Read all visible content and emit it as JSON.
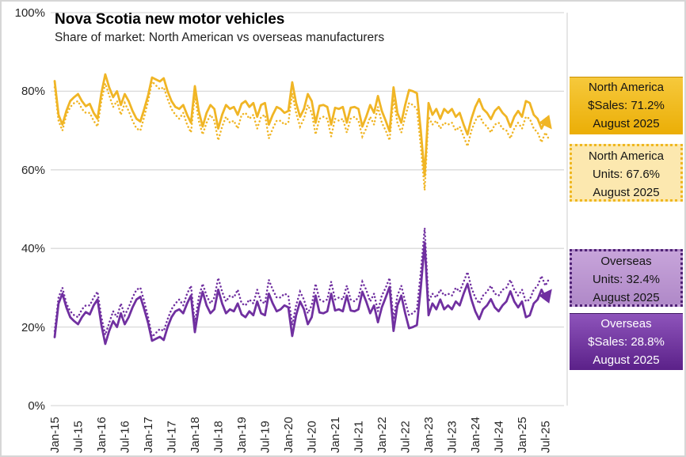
{
  "title": "Nova Scotia new motor vehicles",
  "subtitle": "Share of market: North American vs overseas manufacturers",
  "colors": {
    "north_america_line": "#f0b525",
    "overseas_line": "#7030a0",
    "gridline": "#d9d9d9",
    "axis_text": "#262626"
  },
  "legend": {
    "boxes": [
      {
        "title": "North America",
        "value": "$Sales: 71.2%",
        "date": "August 2025"
      },
      {
        "title": "North America",
        "value": "Units: 67.6%",
        "date": "August 2025"
      },
      {
        "title": "Overseas",
        "value": "Units: 32.4%",
        "date": "August 2025"
      },
      {
        "title": "Overseas",
        "value": "$Sales: 28.8%",
        "date": "August 2025"
      }
    ]
  },
  "chart_data": {
    "type": "line",
    "title": "Nova Scotia new motor vehicles",
    "subtitle": "Share of market: North American vs overseas manufacturers",
    "x_monthly_range": "Jan-2015 to Aug-2025 (monthly)",
    "x_ticks": [
      "Jan-15",
      "Jul-15",
      "Jan-16",
      "Jul-16",
      "Jan-17",
      "Jul-17",
      "Jan-18",
      "Jul-18",
      "Jan-19",
      "Jul-19",
      "Jan-20",
      "Jul-20",
      "Jan-21",
      "Jul-21",
      "Jan-22",
      "Jul-22",
      "Jan-23",
      "Jul-23",
      "Jan-24",
      "Jul-24",
      "Jan-25",
      "Jul-25"
    ],
    "y_ticks": [
      "100%",
      "80%",
      "60%",
      "40%",
      "20%",
      "0%"
    ],
    "ylim": [
      0,
      100
    ],
    "grid": "horizontal",
    "legend_position": "right",
    "series": [
      {
        "name": "North America $Sales",
        "style": "solid",
        "color": "#f0b525",
        "arrow_end": true,
        "values": [
          82.6,
          74,
          71.5,
          75,
          77.5,
          78.5,
          79.3,
          77.5,
          76.2,
          76.8,
          74.5,
          73,
          79.5,
          84.3,
          81,
          78.5,
          80,
          76.5,
          79.3,
          77.5,
          75,
          73,
          72.3,
          75.5,
          79,
          83.5,
          83,
          82.5,
          83.3,
          80,
          77.5,
          76,
          75.5,
          76.5,
          74,
          72,
          81.3,
          75,
          71,
          74.5,
          76.5,
          75.5,
          70.5,
          74,
          76.5,
          75.5,
          76,
          74,
          76.8,
          77.5,
          76,
          77,
          73.5,
          76.5,
          77,
          71.5,
          74,
          76,
          75.5,
          74.5,
          75,
          82.3,
          77,
          73.5,
          75.5,
          79.3,
          77.5,
          72,
          76.3,
          76.5,
          76,
          71.5,
          75.8,
          75.5,
          76,
          72,
          75.8,
          76,
          75.5,
          71,
          73.5,
          76.5,
          74.5,
          78.8,
          75,
          72.5,
          69.8,
          81,
          74.5,
          72,
          76.5,
          80.3,
          80,
          79.5,
          70,
          58.5,
          77,
          74,
          75.5,
          73,
          75.5,
          74.5,
          75.5,
          73.5,
          74.5,
          71.5,
          69,
          73,
          76,
          78,
          75.5,
          74.5,
          72.9,
          75,
          76,
          74.5,
          73.5,
          70.9,
          73.5,
          75,
          73.5,
          77.5,
          77,
          74,
          73,
          70.5,
          72.5,
          71.2
        ]
      },
      {
        "name": "North America Units",
        "style": "dotted",
        "color": "#f0b525",
        "arrow_end": false,
        "values": [
          81,
          72.5,
          70,
          74,
          76,
          77,
          77.5,
          75.5,
          74.5,
          74.5,
          72.5,
          71,
          77.5,
          82,
          79,
          76,
          77.5,
          74,
          77,
          75,
          72.5,
          70.5,
          70,
          73.5,
          77.5,
          82.5,
          81.5,
          80.5,
          81,
          78,
          75.5,
          74,
          73,
          74.5,
          71.5,
          69.5,
          79,
          72.5,
          69,
          72,
          74,
          72.5,
          67.5,
          71,
          73.5,
          72,
          72.5,
          70.5,
          74,
          74.5,
          73,
          74,
          70.5,
          73.5,
          74,
          68,
          70.5,
          72.5,
          72.5,
          71.5,
          72,
          79.5,
          74.5,
          71,
          73,
          76.5,
          74.5,
          69,
          73,
          73.5,
          73,
          68.5,
          73,
          72.5,
          73,
          69.5,
          73,
          73.5,
          72.5,
          68.5,
          70.5,
          73.5,
          71.5,
          76,
          72,
          70,
          67.5,
          78,
          72,
          69.5,
          73.5,
          77,
          76.5,
          75.5,
          66,
          54.8,
          73.5,
          71.5,
          72.5,
          70.5,
          72,
          71.5,
          72,
          70,
          71,
          68.5,
          66,
          70,
          72.5,
          74,
          72,
          71,
          69.5,
          71.5,
          72,
          70.5,
          70,
          68,
          70.5,
          72,
          70.5,
          73.5,
          73,
          70.5,
          69.5,
          67,
          69.5,
          67.6
        ]
      },
      {
        "name": "Overseas Units",
        "style": "dotted",
        "color": "#7030a0",
        "arrow_end": false,
        "values": [
          19,
          27.5,
          30,
          26,
          24,
          23,
          22.5,
          24.5,
          25.5,
          25.5,
          27.5,
          29,
          22.5,
          18,
          21,
          24,
          22.5,
          26,
          23,
          25,
          27.5,
          29.5,
          30,
          26.5,
          22.5,
          17.5,
          18.5,
          19.5,
          19,
          22,
          24.5,
          26,
          27,
          25.5,
          28.5,
          30.5,
          21,
          27.5,
          31,
          28,
          26,
          27.5,
          32.5,
          29,
          26.5,
          28,
          27.5,
          29.5,
          26,
          25.5,
          27,
          26,
          29.5,
          26.5,
          26,
          32,
          29.5,
          27.5,
          27.5,
          28.5,
          28,
          20.5,
          25.5,
          29,
          27,
          23.5,
          25.5,
          31,
          27,
          26.5,
          27,
          31.5,
          27,
          27.5,
          27,
          30.5,
          27,
          26.5,
          27.5,
          31.5,
          29.5,
          26.5,
          28.5,
          24,
          28,
          30,
          32.5,
          22,
          28,
          30.5,
          26.5,
          23,
          23.5,
          24.5,
          34,
          45.2,
          26.5,
          28.5,
          27.5,
          29.5,
          28,
          28.5,
          28,
          30,
          29,
          31.5,
          34,
          30,
          27.5,
          26,
          28,
          29,
          30.5,
          28.5,
          28,
          29.5,
          30,
          32,
          29.5,
          28,
          29.5,
          26.5,
          27,
          29.5,
          30.5,
          33,
          30.5,
          32.4
        ]
      },
      {
        "name": "Overseas $Sales",
        "style": "solid",
        "color": "#7030a0",
        "arrow_end": true,
        "values": [
          17.4,
          26,
          28.5,
          25,
          22.5,
          21.5,
          20.7,
          22.5,
          23.8,
          23.2,
          25.5,
          27,
          20.5,
          15.7,
          19,
          21.5,
          20,
          23.5,
          20.7,
          22.5,
          25,
          27,
          27.7,
          24.5,
          21,
          16.5,
          17,
          17.5,
          16.7,
          20,
          22.5,
          24,
          24.5,
          23.5,
          26,
          28,
          18.7,
          25,
          29,
          25.5,
          23.5,
          24.5,
          29.5,
          26,
          23.5,
          24.5,
          24,
          26,
          23.2,
          22.5,
          24,
          23,
          26.5,
          23.5,
          23,
          28.5,
          26,
          24,
          24.5,
          25.5,
          25,
          17.7,
          23,
          26.5,
          24.5,
          20.7,
          22.5,
          28,
          23.7,
          23.5,
          24,
          28.5,
          24.2,
          24.5,
          24,
          28,
          24.2,
          24,
          24.5,
          29,
          26.5,
          23.5,
          25.5,
          21.2,
          25,
          27.5,
          30.2,
          19,
          25.5,
          28,
          23.5,
          19.7,
          20,
          20.5,
          30,
          41.5,
          23,
          26,
          24.5,
          27,
          24.5,
          25.5,
          24.5,
          26.5,
          25.5,
          28.5,
          31,
          27,
          24,
          22,
          24.5,
          25.5,
          27.1,
          25,
          24,
          25.5,
          26.5,
          29.1,
          26.5,
          25,
          26.5,
          22.5,
          23,
          26,
          27,
          29.5,
          27.5,
          28.8
        ]
      }
    ]
  }
}
